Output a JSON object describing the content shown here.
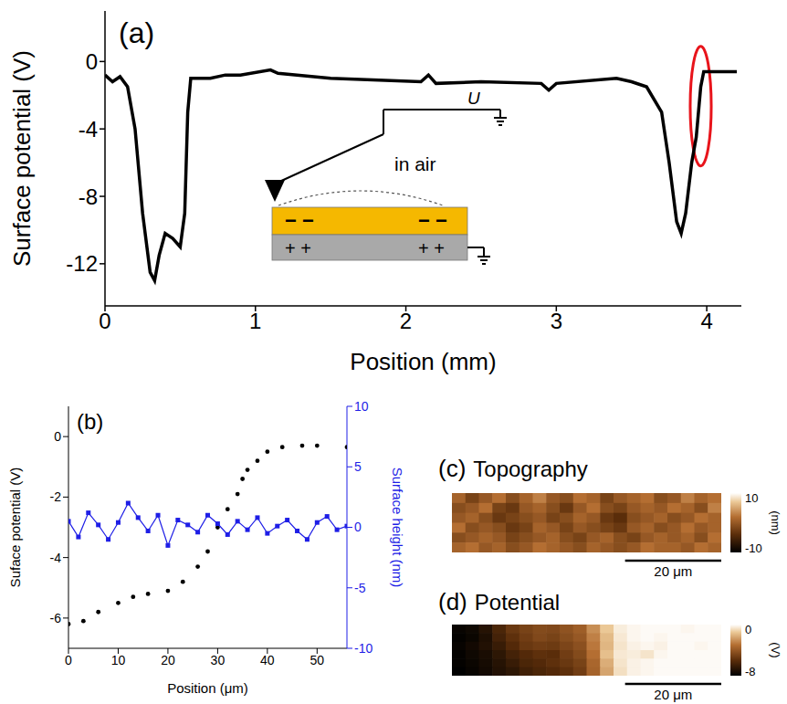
{
  "chart_data": [
    {
      "type": "line",
      "title": "(a)",
      "x_label": "Position (mm)",
      "y_label": "Surface potential (V)",
      "x": [
        0,
        0.05,
        0.1,
        0.15,
        0.2,
        0.25,
        0.3,
        0.33,
        0.36,
        0.4,
        0.45,
        0.5,
        0.53,
        0.55,
        0.57,
        0.7,
        0.8,
        0.9,
        1.1,
        1.15,
        1.5,
        2.1,
        2.15,
        2.2,
        2.5,
        2.9,
        2.95,
        3.0,
        3.4,
        3.5,
        3.6,
        3.7,
        3.75,
        3.8,
        3.83,
        3.86,
        3.9,
        3.93,
        3.96,
        3.98,
        4.2
      ],
      "values": [
        -0.8,
        -1.2,
        -0.9,
        -1.5,
        -4,
        -9,
        -12.5,
        -13,
        -11.5,
        -10.2,
        -10.5,
        -11,
        -9,
        -3,
        -1,
        -1,
        -0.8,
        -0.8,
        -0.5,
        -0.7,
        -1.0,
        -1.2,
        -0.8,
        -1.3,
        -1.2,
        -1.3,
        -1.7,
        -1.3,
        -1.0,
        -1.2,
        -1.5,
        -3,
        -6,
        -9.5,
        -10.2,
        -9,
        -6,
        -4.5,
        -1.5,
        -0.6,
        -0.6
      ],
      "color": "#000000",
      "marker": "none",
      "line_style": "solid",
      "xlim": [
        0,
        4.23
      ],
      "xticks": [
        0,
        1,
        2,
        3,
        4
      ],
      "ylim": [
        -14.5,
        3
      ],
      "yticks": [
        -12,
        -8,
        -4,
        0
      ],
      "inset": {
        "voltage_label": "U",
        "medium_label": "in air",
        "top_charges": "− −",
        "bottom_charges": "+ +"
      },
      "highlight": {
        "x": [
          3.89,
          4.03
        ],
        "y": [
          -6.2,
          0.9
        ],
        "color": "#e8141b"
      }
    },
    {
      "type": "scatter",
      "title": "(b)",
      "x_label": "Position (μm)",
      "xlim": [
        0,
        56
      ],
      "xticks": [
        0,
        10,
        20,
        30,
        40,
        50
      ],
      "ylim": [
        -7,
        1
      ],
      "yticks": [
        -6,
        -4,
        -2,
        0
      ],
      "y2lim": [
        -10,
        10
      ],
      "y2ticks": [
        -10,
        -5,
        0,
        5,
        10
      ],
      "series": [
        {
          "name": "Suface potential (V)",
          "color": "#000000",
          "marker": "circle",
          "line_style": "none",
          "x": [
            0,
            3,
            6,
            10,
            13,
            16,
            20,
            23,
            26,
            28,
            30,
            32,
            34,
            35,
            36,
            38,
            40,
            43,
            47,
            50,
            56
          ],
          "values": [
            -6.2,
            -6.1,
            -5.8,
            -5.5,
            -5.3,
            -5.2,
            -5.1,
            -4.8,
            -4.3,
            -3.8,
            -3.0,
            -2.4,
            -1.9,
            -1.4,
            -1.1,
            -0.8,
            -0.5,
            -0.35,
            -0.3,
            -0.3,
            -0.35
          ]
        },
        {
          "name": "Surface height (nm)",
          "color": "#1e1ee6",
          "marker": "square",
          "line_style": "solid",
          "axis": "y2",
          "x": [
            0,
            2,
            4,
            6,
            8,
            10,
            12,
            14,
            16,
            18,
            20,
            22,
            24,
            26,
            28,
            30,
            32,
            34,
            36,
            38,
            40,
            42,
            44,
            46,
            48,
            50,
            52,
            54,
            56
          ],
          "values": [
            0.5,
            -0.8,
            1.2,
            0.2,
            -1.0,
            0.4,
            2.0,
            0.8,
            -0.3,
            1.0,
            -1.5,
            0.6,
            0.2,
            -0.4,
            1.0,
            0.3,
            -0.6,
            0.5,
            -0.2,
            0.8,
            -0.5,
            0.1,
            0.6,
            -0.3,
            -1.0,
            0.4,
            0.9,
            -0.2,
            0.1
          ]
        }
      ]
    },
    {
      "type": "heatmap",
      "panel": "(c)",
      "title": "Topography",
      "xlim": [
        0,
        56
      ],
      "cells": [
        [
          1,
          -2,
          0,
          2,
          -1,
          1,
          3,
          0,
          -1,
          2,
          1,
          -2,
          0,
          1,
          2,
          -1,
          0,
          3,
          1,
          2
        ],
        [
          -1,
          0,
          2,
          -2,
          -3,
          0,
          1,
          -1,
          -3,
          0,
          2,
          -1,
          -2,
          0,
          1,
          0,
          2,
          1,
          -1,
          3
        ],
        [
          0,
          1,
          -1,
          -3,
          -2,
          -1,
          0,
          -2,
          -1,
          1,
          0,
          -3,
          -4,
          -1,
          0,
          1,
          -1,
          0,
          2,
          1
        ],
        [
          2,
          -1,
          0,
          -1,
          -3,
          -2,
          1,
          0,
          -2,
          0,
          -1,
          -2,
          -3,
          0,
          1,
          -1,
          0,
          2,
          0,
          1
        ],
        [
          -1,
          0,
          1,
          0,
          -2,
          -1,
          0,
          1,
          -1,
          -2,
          0,
          1,
          -1,
          -2,
          0,
          1,
          0,
          1,
          -1,
          2
        ],
        [
          1,
          2,
          0,
          1,
          -1,
          0,
          2,
          1,
          0,
          -1,
          1,
          0,
          -1,
          0,
          2,
          1,
          1,
          0,
          2,
          1
        ]
      ],
      "colorbar": {
        "range": [
          -10,
          10
        ],
        "ticks": [
          -10,
          10
        ],
        "label": "(nm)"
      },
      "scale_bar": {
        "length": 20,
        "label": "20 μm"
      }
    },
    {
      "type": "heatmap",
      "panel": "(d)",
      "title": "Potential",
      "xlim": [
        0,
        56
      ],
      "cells": [
        [
          -7.8,
          -7.6,
          -7,
          -6,
          -5.2,
          -4.8,
          -4.5,
          -4.6,
          -4.2,
          -3.8,
          -2.5,
          -1.2,
          -0.4,
          -0.2,
          -0.1,
          -0.1,
          -0.1,
          -0.2,
          -0.1,
          -0.1
        ],
        [
          -7.9,
          -7.7,
          -7.2,
          -6.2,
          -5.5,
          -5,
          -4.6,
          -4.8,
          -4.4,
          -4,
          -2.8,
          -1.5,
          -0.5,
          -0.2,
          -0.1,
          -0.2,
          -0.1,
          -0.1,
          -0.1,
          -0.1
        ],
        [
          -7.8,
          -7.5,
          -7.1,
          -6.5,
          -5.8,
          -5.2,
          -5,
          -5.1,
          -4.7,
          -4.3,
          -3,
          -1.6,
          -0.6,
          -0.3,
          -0.2,
          -0.3,
          -0.1,
          -0.1,
          -0.2,
          -0.1
        ],
        [
          -7.9,
          -7.6,
          -7.3,
          -6.8,
          -6.2,
          -5.8,
          -5.5,
          -5.6,
          -5,
          -4.5,
          -3.2,
          -1.4,
          -0.5,
          -0.4,
          -0.6,
          -0.2,
          -0.1,
          -0.1,
          -0.1,
          -0.1
        ],
        [
          -7.9,
          -7.7,
          -7.4,
          -7,
          -6.5,
          -6,
          -5.8,
          -5.5,
          -5.2,
          -4.8,
          -3.5,
          -1.8,
          -0.6,
          -0.3,
          -0.2,
          -0.1,
          -0.1,
          -0.1,
          -0.1,
          -0.1
        ],
        [
          -8,
          -7.8,
          -7.5,
          -7.1,
          -6.8,
          -6.3,
          -6,
          -5.8,
          -5.5,
          -5,
          -3.6,
          -2,
          -0.7,
          -0.3,
          -0.2,
          -0.1,
          -0.1,
          -0.1,
          -0.1,
          -0.1
        ]
      ],
      "colorbar": {
        "range": [
          -8,
          0
        ],
        "ticks": [
          -8,
          0
        ],
        "label": "(V)"
      },
      "scale_bar": {
        "length": 20,
        "label": "20 μm"
      }
    }
  ]
}
